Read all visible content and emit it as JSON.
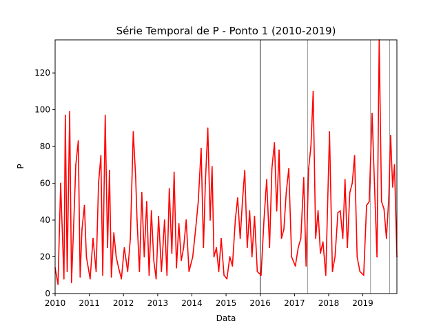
{
  "chart_data": {
    "type": "line",
    "title": "Série Temporal de P - Ponto 1 (2010-2019)",
    "xlabel": "Data",
    "ylabel": "P",
    "xlim": [
      "2010-01-01",
      "2019-12-31"
    ],
    "ylim": [
      0,
      138
    ],
    "x_ticks": [
      "2010",
      "2011",
      "2012",
      "2013",
      "2014",
      "2015",
      "2016",
      "2017",
      "2018",
      "2019"
    ],
    "y_ticks": [
      0,
      20,
      40,
      60,
      80,
      100,
      120
    ],
    "grid": false,
    "legend": "none",
    "series": [
      {
        "color": "#ff0000",
        "x": [
          "2010-01-01",
          "2010-02-01",
          "2010-03-01",
          "2010-04-05",
          "2010-04-20",
          "2010-05-10",
          "2010-06-05",
          "2010-06-25",
          "2010-07-20",
          "2010-08-10",
          "2010-09-05",
          "2010-09-25",
          "2010-10-15",
          "2010-11-10",
          "2010-12-01",
          "2011-01-10",
          "2011-02-10",
          "2011-03-15",
          "2011-04-10",
          "2011-05-05",
          "2011-05-25",
          "2011-06-20",
          "2011-07-15",
          "2011-08-05",
          "2011-08-25",
          "2011-09-20",
          "2011-10-15",
          "2011-11-10",
          "2011-12-10",
          "2012-01-10",
          "2012-02-15",
          "2012-03-15",
          "2012-04-15",
          "2012-05-10",
          "2012-05-25",
          "2012-06-20",
          "2012-07-15",
          "2012-08-10",
          "2012-09-05",
          "2012-10-01",
          "2012-10-25",
          "2012-11-20",
          "2012-12-15",
          "2013-01-10",
          "2013-02-10",
          "2013-03-15",
          "2013-04-10",
          "2013-05-05",
          "2013-06-01",
          "2013-06-25",
          "2013-07-20",
          "2013-08-15",
          "2013-09-10",
          "2013-10-05",
          "2013-11-01",
          "2013-12-01",
          "2014-01-10",
          "2014-02-10",
          "2014-03-10",
          "2014-04-10",
          "2014-05-05",
          "2014-05-25",
          "2014-06-20",
          "2014-07-15",
          "2014-08-05",
          "2014-08-25",
          "2014-09-20",
          "2014-10-15",
          "2014-11-10",
          "2014-12-10",
          "2015-01-10",
          "2015-02-10",
          "2015-03-10",
          "2015-04-10",
          "2015-05-05",
          "2015-06-01",
          "2015-06-25",
          "2015-07-20",
          "2015-08-15",
          "2015-09-10",
          "2015-10-05",
          "2015-11-01",
          "2015-12-01",
          "2016-01-10",
          "2016-02-10",
          "2016-03-10",
          "2016-04-10",
          "2016-05-05",
          "2016-06-01",
          "2016-06-25",
          "2016-07-20",
          "2016-08-15",
          "2016-09-10",
          "2016-10-05",
          "2016-11-01",
          "2016-12-01",
          "2017-01-10",
          "2017-02-10",
          "2017-03-10",
          "2017-04-10",
          "2017-05-05",
          "2017-06-01",
          "2017-06-25",
          "2017-07-20",
          "2017-08-15",
          "2017-09-10",
          "2017-10-05",
          "2017-11-01",
          "2017-12-01",
          "2018-01-10",
          "2018-02-10",
          "2018-03-10",
          "2018-04-10",
          "2018-05-05",
          "2018-06-01",
          "2018-06-25",
          "2018-07-20",
          "2018-08-15",
          "2018-09-10",
          "2018-10-05",
          "2018-11-01",
          "2018-12-01",
          "2019-01-10",
          "2019-02-10",
          "2019-03-10",
          "2019-04-10",
          "2019-05-05",
          "2019-06-01",
          "2019-06-25",
          "2019-07-20",
          "2019-08-15",
          "2019-09-10",
          "2019-10-05",
          "2019-10-25",
          "2019-11-15",
          "2019-12-05",
          "2019-12-31"
        ],
        "y": [
          14,
          5,
          60,
          8,
          97,
          12,
          99,
          6,
          40,
          70,
          83,
          9,
          35,
          48,
          20,
          8,
          30,
          12,
          60,
          75,
          10,
          97,
          25,
          67,
          9,
          33,
          20,
          14,
          8,
          25,
          12,
          30,
          88,
          64,
          40,
          12,
          55,
          20,
          50,
          10,
          45,
          18,
          8,
          42,
          12,
          40,
          10,
          57,
          22,
          66,
          14,
          38,
          18,
          25,
          40,
          12,
          20,
          35,
          50,
          79,
          25,
          60,
          90,
          40,
          69,
          20,
          25,
          12,
          30,
          10,
          8,
          20,
          15,
          40,
          52,
          30,
          50,
          67,
          25,
          45,
          20,
          42,
          12,
          10,
          40,
          62,
          25,
          68,
          82,
          45,
          78,
          30,
          35,
          55,
          68,
          20,
          15,
          25,
          30,
          63,
          15,
          68,
          80,
          110,
          30,
          45,
          22,
          28,
          10,
          88,
          12,
          20,
          44,
          45,
          30,
          62,
          25,
          55,
          60,
          75,
          20,
          12,
          10,
          48,
          50,
          98,
          60,
          20,
          138,
          50,
          46,
          30,
          52,
          86,
          58,
          70,
          20
        ]
      }
    ],
    "reference_lines_x": [
      "2016-01-01",
      "2017-05-20",
      "2019-03-25",
      "2019-10-15"
    ]
  }
}
